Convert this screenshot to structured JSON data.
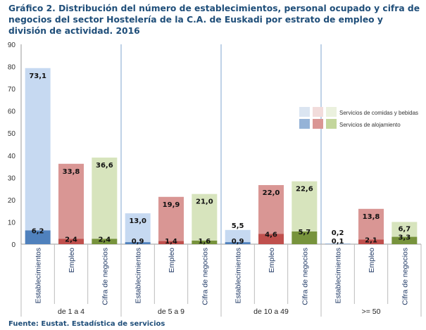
{
  "title": "Gráfico 2. Distribución  del número de establecimientos,  personal ocupado y cifra de negocios del sector Hostelería de la C.A. de Euskadi por estrato de empleo y división de actividad. 2016",
  "source": "Fuente: Eustat. Estadística  de servicios",
  "chart_data": {
    "type": "bar",
    "stacked": true,
    "title": "Gráfico 2. Distribución  del número de establecimientos,  personal ocupado y cifra de negocios del sector Hostelería de la C.A. de Euskadi por estrato de empleo y división de actividad. 2016",
    "ylim": [
      0,
      90
    ],
    "yticks": [
      0,
      10,
      20,
      30,
      40,
      50,
      60,
      70,
      80,
      90
    ],
    "grid": false,
    "legend_position": "right",
    "groups": [
      "de 1 a 4",
      "de 5 a 9",
      "de 10 a 49",
      ">= 50"
    ],
    "categories": [
      "Establecimientos",
      "Empleo",
      "Cifra de negocios"
    ],
    "series": [
      {
        "name": "Servicios de alojamiento",
        "values": [
          [
            6.2,
            2.4,
            2.4
          ],
          [
            0.9,
            1.4,
            1.6
          ],
          [
            0.9,
            4.6,
            5.7
          ],
          [
            0.1,
            2.1,
            3.3
          ]
        ]
      },
      {
        "name": "Servicios de comidas y bebidas",
        "values": [
          [
            73.1,
            33.8,
            36.6
          ],
          [
            13.0,
            19.9,
            21.0
          ],
          [
            5.5,
            22.0,
            22.6
          ],
          [
            0.2,
            13.8,
            6.7
          ]
        ]
      }
    ],
    "data_labels": [
      [
        "6,2",
        "2,4",
        "2,4",
        "0,9",
        "1,4",
        "1,6",
        "0,9",
        "4,6",
        "5,7",
        "0,1",
        "2,1",
        "3,3"
      ],
      [
        "73,1",
        "33,8",
        "36,6",
        "13,0",
        "19,9",
        "21,0",
        "5,5",
        "22,0",
        "22,6",
        "0,2",
        "13,8",
        "6,7"
      ]
    ],
    "colors": {
      "Establecimientos": {
        "bottom": "#4f81bd",
        "top": "#c6d9f1"
      },
      "Empleo": {
        "bottom": "#c0504d",
        "top": "#d99694"
      },
      "Cifra de negocios": {
        "bottom": "#77933c",
        "top": "#d7e4bd"
      }
    },
    "legend_colors": {
      "Servicios de comidas y bebidas": [
        "#dbe5f1",
        "#f2dcdb",
        "#ebf1de"
      ],
      "Servicios de alojamiento": [
        "#95b3d7",
        "#da9694",
        "#c3d69b"
      ]
    }
  }
}
